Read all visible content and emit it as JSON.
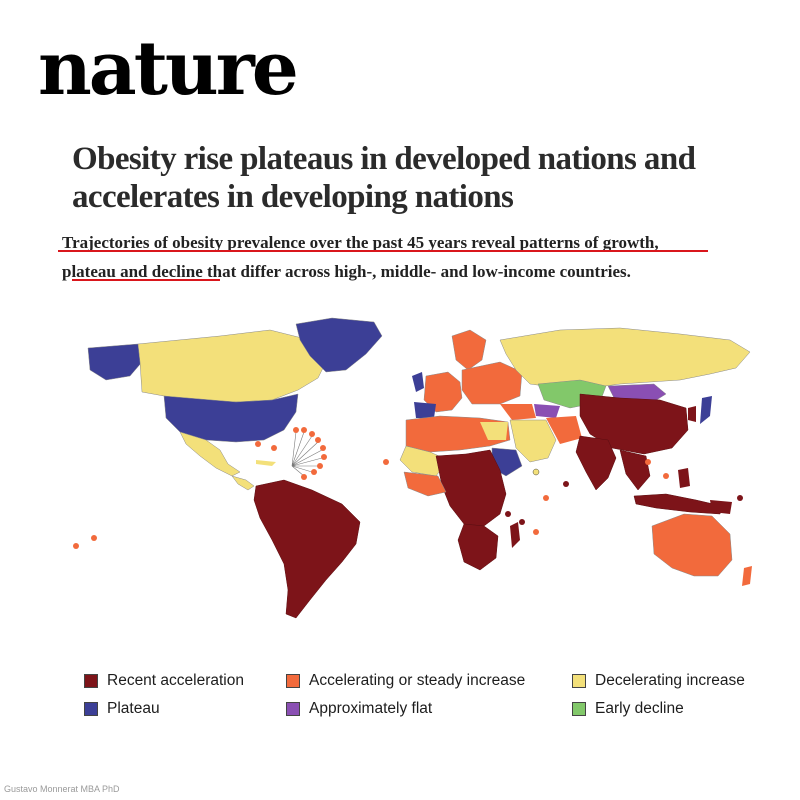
{
  "masthead": "nature",
  "headline": [
    "Obesity rise plateaus in developed nations and",
    "accelerates in developing nations"
  ],
  "standfirst": [
    "Trajectories of obesity prevalence over the past 45 years reveal patterns of growth,",
    "plateau and decline that differ across high-, middle- and low-income countries."
  ],
  "colors": {
    "recent_acceleration": "#7d1419",
    "accelerating_steady": "#f26a3c",
    "decelerating": "#f3e07a",
    "plateau": "#3c3f96",
    "flat": "#8a4fb3",
    "early_decline": "#82c86a",
    "underline": "#d9161c"
  },
  "legend": [
    {
      "label": "Recent acceleration",
      "color": "#7d1419"
    },
    {
      "label": "Accelerating or steady increase",
      "color": "#f26a3c"
    },
    {
      "label": "Decelerating increase",
      "color": "#f3e07a"
    },
    {
      "label": "Plateau",
      "color": "#3c3f96"
    },
    {
      "label": "Approximately flat",
      "color": "#8a4fb3"
    },
    {
      "label": "Early decline",
      "color": "#82c86a"
    }
  ],
  "credit": "Gustavo Monnerat MBA PhD"
}
